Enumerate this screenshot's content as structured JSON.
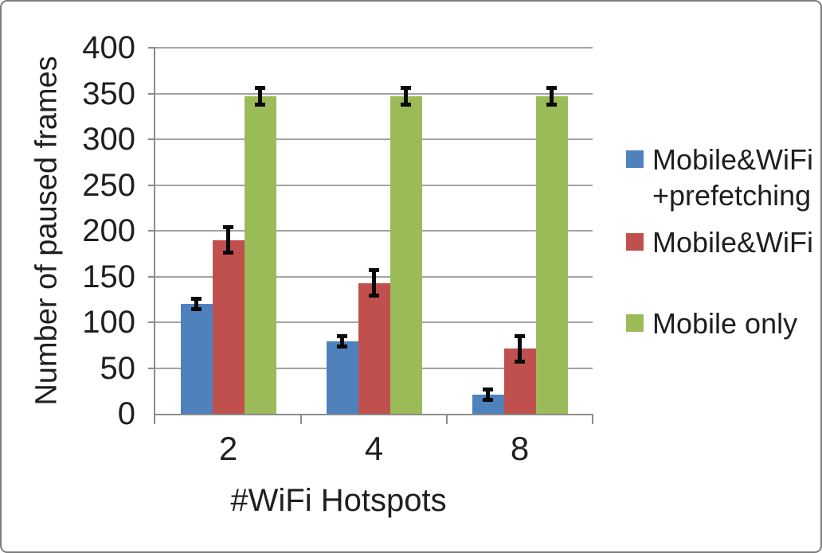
{
  "chart_data": {
    "type": "bar",
    "title": "",
    "xlabel": "#WiFi Hotspots",
    "ylabel": "Number of paused frames",
    "categories": [
      "2",
      "4",
      "8"
    ],
    "series": [
      {
        "name": "Mobile&WiFi +prefetching",
        "color": "#4F81BD",
        "values": [
          120,
          79,
          21
        ],
        "errors": [
          8,
          8,
          8
        ]
      },
      {
        "name": "Mobile&WiFi",
        "color": "#C0504D",
        "values": [
          190,
          143,
          71
        ],
        "errors": [
          16,
          16,
          16
        ]
      },
      {
        "name": "Mobile only",
        "color": "#9BBB59",
        "values": [
          347,
          347,
          347
        ],
        "errors": [
          11,
          11,
          11
        ]
      }
    ],
    "legend_lines": [
      [
        "Mobile&WiFi",
        "+prefetching"
      ],
      [
        "Mobile&WiFi"
      ],
      [
        "Mobile only"
      ]
    ],
    "ylim": [
      0,
      400
    ],
    "yticks": [
      0,
      50,
      100,
      150,
      200,
      250,
      300,
      350,
      400
    ],
    "grid": "horizontal",
    "legend_position": "right",
    "error_bars": true
  }
}
